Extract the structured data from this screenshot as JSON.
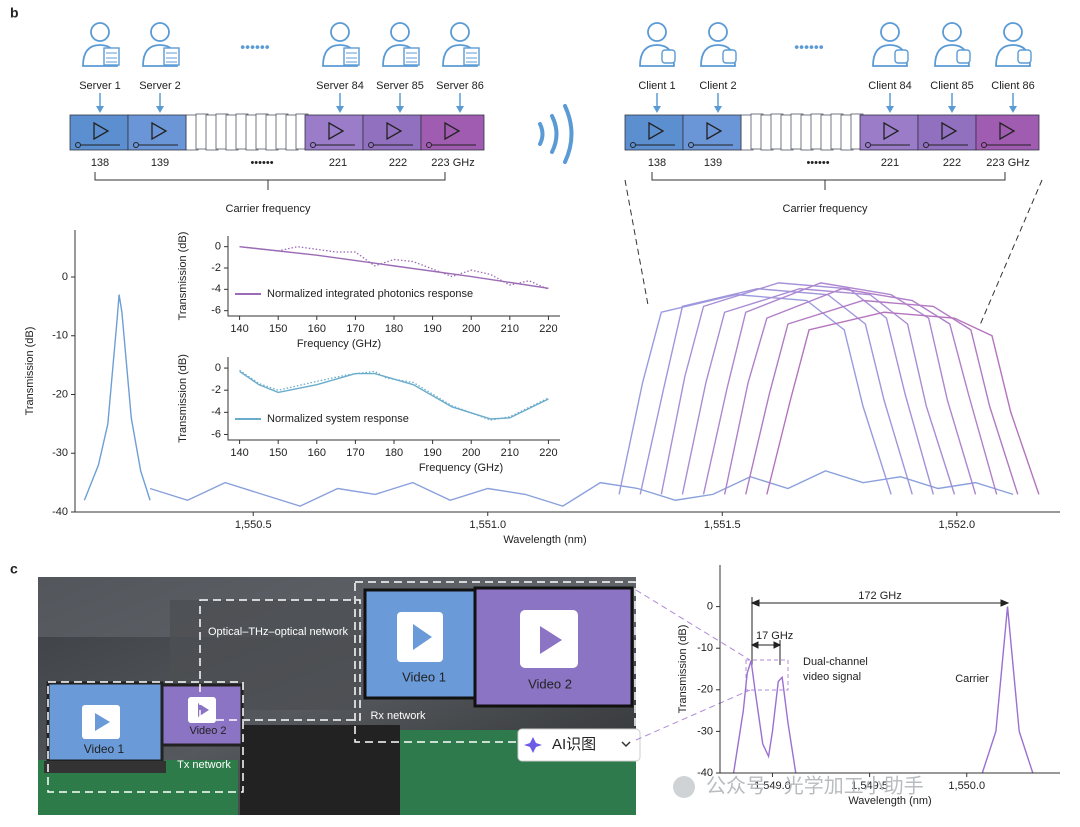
{
  "panel_labels": [
    "b",
    "c"
  ],
  "servers": [
    "Server 1",
    "Server 2",
    "Server 84",
    "Server 85",
    "Server 86"
  ],
  "clients": [
    "Client 1",
    "Client 2",
    "Client 84",
    "Client 85",
    "Client 86"
  ],
  "server_freqs": [
    "138",
    "139",
    "••••••",
    "221",
    "222",
    "223 GHz"
  ],
  "client_freqs": [
    "138",
    "139",
    "••••••",
    "221",
    "222",
    "223 GHz"
  ],
  "server_ellipsis": "••••••",
  "client_ellipsis": "••••••",
  "bracket_labels": [
    "Carrier frequency",
    "Carrier frequency"
  ],
  "photo": {
    "network": "Optical–THz–optical network",
    "rx": "Rx network",
    "tx": "Tx network",
    "screens": [
      "Video 1",
      "Video 2",
      "Video 1",
      "Video 2"
    ],
    "button": "AI识图"
  },
  "watermark": "公众号 · 光学加工小助手",
  "chart_data": [
    {
      "type": "line",
      "xlabel": "Wavelength (nm)",
      "ylabel": "Transmission (dB)",
      "xlim": [
        1550.12,
        1552.22
      ],
      "ylim": [
        -40,
        8
      ],
      "xticks": [
        {
          "value": 1550.5,
          "label": "1,550.5"
        },
        {
          "value": 1551.0,
          "label": "1,551.0"
        },
        {
          "value": 1551.5,
          "label": "1,551.5"
        },
        {
          "value": 1552.0,
          "label": "1,552.0"
        }
      ],
      "yticks": [
        0,
        -10,
        -20,
        -30,
        -40
      ],
      "series": [
        {
          "color": "#6d9fd6",
          "x": [
            1550.14,
            1550.17,
            1550.19,
            1550.2,
            1550.21,
            1550.214,
            1550.22,
            1550.23,
            1550.24,
            1550.26,
            1550.28
          ],
          "values": [
            -38,
            -32,
            -25,
            -16,
            -7,
            -3,
            -6,
            -15,
            -24,
            -33,
            -38
          ]
        },
        {
          "color": "#8aa0dc",
          "x": [
            1550.28,
            1550.36,
            1550.44,
            1550.52,
            1550.6,
            1550.68,
            1550.76,
            1550.84,
            1550.92,
            1551.0,
            1551.08,
            1551.16,
            1551.24,
            1551.32,
            1551.4,
            1551.48,
            1551.56,
            1551.64,
            1551.72,
            1551.8,
            1551.88,
            1551.96,
            1552.04,
            1552.12
          ],
          "values": [
            -36,
            -38,
            -35,
            -37,
            -39,
            -36,
            -37,
            -35,
            -38,
            -36,
            -37,
            -39,
            -35,
            -36,
            -38,
            -37,
            -34,
            -36,
            -33,
            -35,
            -34,
            -36,
            -35,
            -37
          ]
        },
        {
          "color": "#9a9ae0",
          "x": [
            1551.28,
            1551.33,
            1551.37,
            1551.53,
            1551.68,
            1551.76,
            1551.8,
            1551.86
          ],
          "values": [
            -37,
            -18,
            -6,
            -3,
            -4,
            -9,
            -22,
            -37
          ]
        },
        {
          "color": "#a096dc",
          "x": [
            1551.325,
            1551.375,
            1551.415,
            1551.575,
            1551.725,
            1551.805,
            1551.845,
            1551.905
          ],
          "values": [
            -37,
            -19,
            -5,
            -2,
            -3,
            -8,
            -21,
            -37
          ]
        },
        {
          "color": "#a690d8",
          "x": [
            1551.37,
            1551.42,
            1551.46,
            1551.62,
            1551.77,
            1551.85,
            1551.89,
            1551.95
          ],
          "values": [
            -37,
            -17,
            -5,
            -1,
            -2,
            -7,
            -20,
            -37
          ]
        },
        {
          "color": "#aa8cd4",
          "x": [
            1551.415,
            1551.465,
            1551.505,
            1551.665,
            1551.815,
            1551.895,
            1551.935,
            1551.995
          ],
          "values": [
            -37,
            -18,
            -6,
            -2,
            -3,
            -8,
            -22,
            -37
          ]
        },
        {
          "color": "#ae86cf",
          "x": [
            1551.46,
            1551.51,
            1551.55,
            1551.71,
            1551.86,
            1551.94,
            1551.98,
            1552.04
          ],
          "values": [
            -37,
            -19,
            -6,
            -1,
            -3,
            -7,
            -21,
            -37
          ]
        },
        {
          "color": "#b080ca",
          "x": [
            1551.505,
            1551.555,
            1551.595,
            1551.755,
            1551.905,
            1551.985,
            1552.025,
            1552.085
          ],
          "values": [
            -37,
            -18,
            -7,
            -2,
            -4,
            -8,
            -20,
            -37
          ]
        },
        {
          "color": "#b27ac4",
          "x": [
            1551.55,
            1551.6,
            1551.64,
            1551.8,
            1551.95,
            1552.03,
            1552.07,
            1552.13
          ],
          "values": [
            -37,
            -20,
            -8,
            -4,
            -5,
            -9,
            -22,
            -37
          ]
        },
        {
          "color": "#b474bd",
          "x": [
            1551.595,
            1551.645,
            1551.685,
            1551.845,
            1551.995,
            1552.075,
            1552.115,
            1552.175
          ],
          "values": [
            -37,
            -21,
            -9,
            -6,
            -7,
            -10,
            -23,
            -37
          ]
        }
      ]
    },
    {
      "type": "line",
      "xlabel": "Frequency (GHz)",
      "ylabel": "Transmission (dB)",
      "xlim": [
        137,
        223
      ],
      "ylim": [
        -6.5,
        1
      ],
      "xticks": [
        140,
        150,
        160,
        170,
        180,
        190,
        200,
        210,
        220
      ],
      "yticks": [
        0,
        -2,
        -4,
        -6
      ],
      "series": [
        {
          "color": "#9b6bb5",
          "style": "dotted",
          "x": [
            140,
            150,
            155,
            165,
            170,
            175,
            180,
            185,
            195,
            200,
            205,
            210,
            215,
            220
          ],
          "values": [
            0,
            -0.4,
            0,
            -0.5,
            -0.5,
            -1.8,
            -1.2,
            -1.4,
            -2.8,
            -2.2,
            -2.6,
            -3.6,
            -3.2,
            -4
          ]
        },
        {
          "name": "Normalized integrated photonics response",
          "color": "#9b6bb5",
          "x": [
            140,
            160,
            180,
            200,
            220
          ],
          "values": [
            0,
            -0.8,
            -1.8,
            -2.8,
            -3.9
          ]
        }
      ]
    },
    {
      "type": "line",
      "xlabel": "Frequency (GHz)",
      "ylabel": "Transmission (dB)",
      "xlim": [
        137,
        223
      ],
      "ylim": [
        -6.5,
        1
      ],
      "xticks": [
        140,
        150,
        160,
        170,
        180,
        190,
        200,
        210,
        220
      ],
      "yticks": [
        0,
        -2,
        -4,
        -6
      ],
      "series": [
        {
          "color": "#6aaccc",
          "style": "dotted",
          "x": [
            140,
            145,
            150,
            160,
            168,
            175,
            178,
            185,
            195,
            205,
            210,
            220
          ],
          "values": [
            -0.2,
            -1.4,
            -2.0,
            -1.2,
            -0.6,
            -0.3,
            -0.9,
            -1.3,
            -3.4,
            -4.7,
            -4.4,
            -2.7
          ]
        },
        {
          "name": "Normalized system response",
          "color": "#6aaccc",
          "x": [
            140,
            145,
            150,
            160,
            170,
            175,
            185,
            195,
            205,
            210,
            220
          ],
          "values": [
            -0.3,
            -1.5,
            -2.2,
            -1.5,
            -0.5,
            -0.5,
            -1.5,
            -3.5,
            -4.6,
            -4.5,
            -2.8
          ]
        }
      ]
    },
    {
      "type": "line",
      "xlabel": "Wavelength (nm)",
      "ylabel": "Transmission (dB)",
      "xlim": [
        1548.73,
        1550.48
      ],
      "ylim": [
        -40,
        10
      ],
      "xticks": [
        {
          "value": 1549.0,
          "label": "1,549.0"
        },
        {
          "value": 1549.5,
          "label": "1,549.5"
        },
        {
          "value": 1550.0,
          "label": "1,550.0"
        }
      ],
      "yticks": [
        0,
        -10,
        -20,
        -30,
        -40
      ],
      "annotations": [
        "172 GHz",
        "17 GHz",
        "Dual-channel",
        "video signal",
        "Carrier"
      ],
      "series": [
        {
          "color": "#9a70d0",
          "x": [
            1548.8,
            1548.85,
            1548.87,
            1548.89,
            1548.91,
            1548.95,
            1548.98,
            1549.0,
            1549.03,
            1549.05,
            1549.08,
            1549.12
          ],
          "values": [
            -40,
            -25,
            -16,
            -13,
            -20,
            -33,
            -36,
            -30,
            -18,
            -17,
            -28,
            -40
          ]
        },
        {
          "color": "#9a70d0",
          "x": [
            1550.08,
            1550.15,
            1550.18,
            1550.21,
            1550.24,
            1550.27,
            1550.34
          ],
          "values": [
            -40,
            -30,
            -15,
            0,
            -15,
            -30,
            -40
          ]
        }
      ]
    }
  ]
}
